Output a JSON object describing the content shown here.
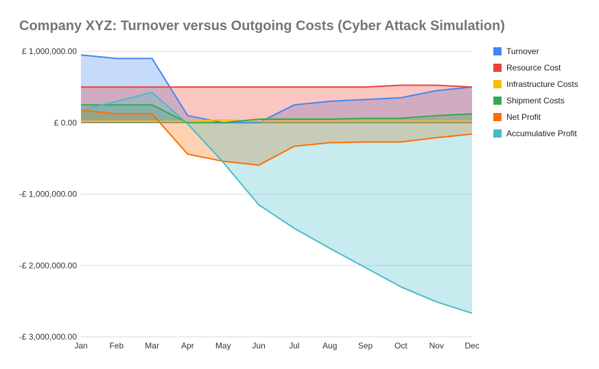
{
  "chart_data": {
    "type": "area",
    "title": "Company XYZ: Turnover versus Outgoing Costs (Cyber Attack Simulation)",
    "xlabel": "",
    "ylabel": "",
    "categories": [
      "Jan",
      "Feb",
      "Mar",
      "Apr",
      "May",
      "Jun",
      "Jul",
      "Aug",
      "Sep",
      "Oct",
      "Nov",
      "Dec"
    ],
    "ylim": [
      -3000000,
      1000000
    ],
    "yticks": [
      1000000,
      0,
      -1000000,
      -2000000,
      -3000000
    ],
    "ytick_labels": [
      "£ 1,000,000.00",
      "£ 0.00",
      "-£ 1,000,000.00",
      "-£ 2,000,000.00",
      "-£ 3,000,000.00"
    ],
    "grid": true,
    "legend_position": "right",
    "series": [
      {
        "name": "Turnover",
        "color": "#4285F4",
        "values": [
          950000,
          900000,
          900000,
          100000,
          0,
          0,
          250000,
          300000,
          325000,
          350000,
          450000,
          500000
        ]
      },
      {
        "name": "Resource Cost",
        "color": "#EA4335",
        "values": [
          500000,
          500000,
          500000,
          500000,
          500000,
          500000,
          500000,
          500000,
          500000,
          525000,
          525000,
          500000
        ]
      },
      {
        "name": "Infrastructure Costs",
        "color": "#FBBC04",
        "values": [
          20000,
          20000,
          20000,
          20000,
          40000,
          20000,
          20000,
          20000,
          20000,
          20000,
          20000,
          20000
        ]
      },
      {
        "name": "Shipment Costs",
        "color": "#34A853",
        "values": [
          250000,
          250000,
          250000,
          0,
          0,
          50000,
          50000,
          50000,
          62500,
          62500,
          100000,
          125000
        ]
      },
      {
        "name": "Net Profit",
        "color": "#FF6D01",
        "values": [
          175000,
          125000,
          125000,
          -440000,
          -540000,
          -595000,
          -330000,
          -280000,
          -270000,
          -270000,
          -210000,
          -160000
        ]
      },
      {
        "name": "Accumulative Profit",
        "color": "#46BDC6",
        "values": [
          175000,
          300000,
          425000,
          -15000,
          -555000,
          -1150000,
          -1480000,
          -1760000,
          -2030000,
          -2300000,
          -2510000,
          -2670000
        ]
      }
    ]
  }
}
